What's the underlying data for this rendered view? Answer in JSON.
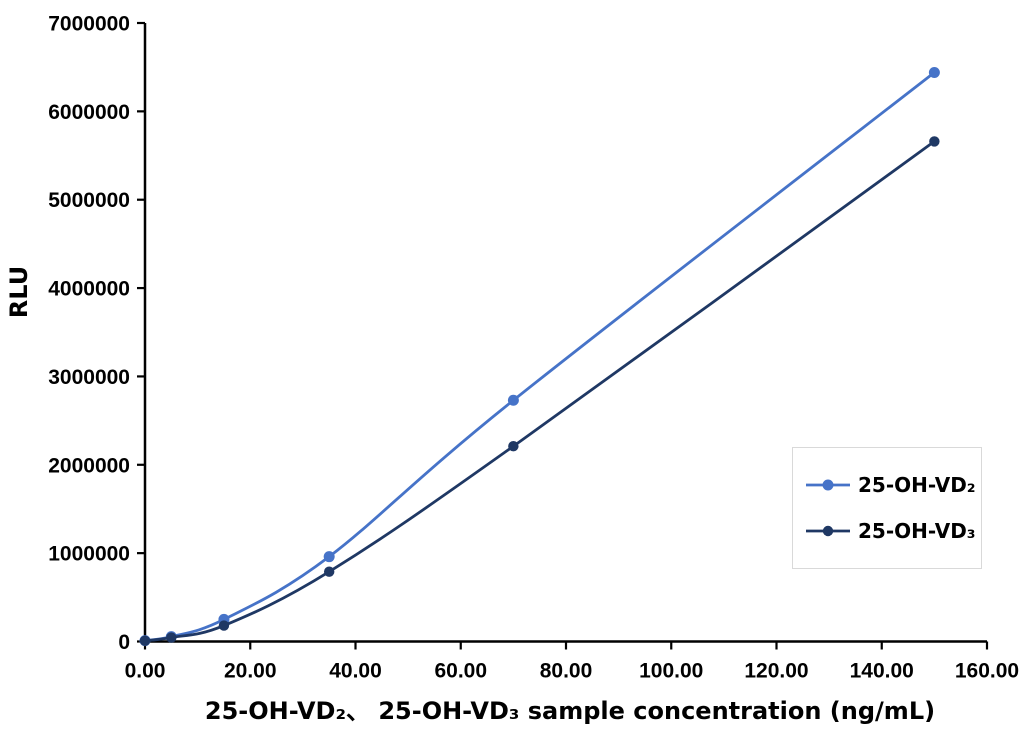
{
  "chart_data": {
    "type": "line",
    "title": "",
    "xlabel": "25-OH-VD₂、 25-OH-VD₃ sample concentration (ng/mL)",
    "ylabel": "RLU",
    "xlim": [
      0,
      160
    ],
    "ylim": [
      0,
      7000000
    ],
    "grid": false,
    "legend_position": "inside-right",
    "x_tick_values": [
      0,
      20,
      40,
      60,
      80,
      100,
      120,
      140,
      160
    ],
    "x_tick_labels": [
      "0.00",
      "20.00",
      "40.00",
      "60.00",
      "80.00",
      "100.00",
      "120.00",
      "140.00",
      "160.00"
    ],
    "y_tick_values": [
      0,
      1000000,
      2000000,
      3000000,
      4000000,
      5000000,
      6000000,
      7000000
    ],
    "y_tick_labels": [
      "0",
      "1000000",
      "2000000",
      "3000000",
      "4000000",
      "5000000",
      "6000000",
      "7000000"
    ],
    "x": [
      0,
      5,
      15,
      35,
      70,
      150
    ],
    "series": [
      {
        "name": "25-OH-VD₂",
        "color": "#4673C8",
        "marker": "circle",
        "line_style": "smooth",
        "values": [
          10000,
          55000,
          250000,
          960000,
          2730000,
          6440000
        ]
      },
      {
        "name": "25-OH-VD₃",
        "color": "#1F3864",
        "marker": "circle",
        "line_style": "smooth",
        "values": [
          8000,
          45000,
          180000,
          790000,
          2210000,
          5660000
        ]
      }
    ],
    "axis_color": "#000000",
    "background_color": "#FFFFFF",
    "legend_border_color": "#D9D9D9"
  }
}
